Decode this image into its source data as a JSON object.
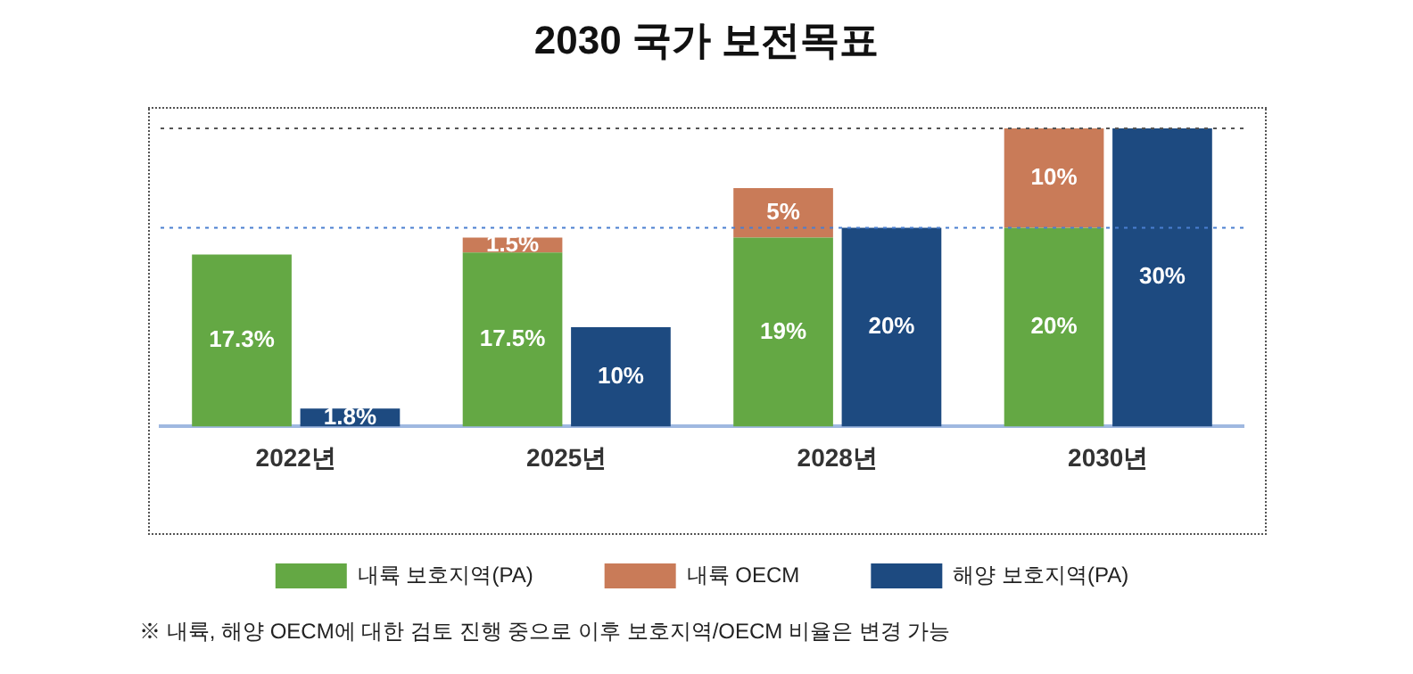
{
  "chart_data": {
    "type": "bar",
    "title": "2030 국가 보전목표",
    "categories": [
      "2022년",
      "2025년",
      "2028년",
      "2030년"
    ],
    "stacked": true,
    "series": [
      {
        "name": "내륙 보호지역(PA)",
        "color": "#64a844",
        "values": [
          17.3,
          17.5,
          19,
          20
        ],
        "value_labels": [
          "17.3%",
          "17.5%",
          "19%",
          "20%"
        ]
      },
      {
        "name": "내륙 OECM",
        "color": "#c97b58",
        "values": [
          null,
          1.5,
          5,
          10
        ],
        "value_labels": [
          null,
          "1.5%",
          "5%",
          "10%"
        ]
      },
      {
        "name": "해양 보호지역(PA)",
        "color": "#1d4a80",
        "axis": "y2",
        "values": [
          1.8,
          10,
          20,
          30
        ],
        "value_labels": [
          "1.8%",
          "10%",
          "20%",
          "30%"
        ]
      }
    ],
    "ref_lines": [
      {
        "axis": "y",
        "value": 30,
        "color": "#555555",
        "line_style": "dotted"
      },
      {
        "axis": "y",
        "value": 20,
        "color": "#4a7fd0",
        "line_style": "dotted"
      }
    ],
    "legend": "bottom",
    "grid": false,
    "annotations": [
      "※ 내륙, 해양 OECM에 대한 검토 진행 중으로 이후 보호지역/OECM 비율은 변경 가능"
    ]
  }
}
